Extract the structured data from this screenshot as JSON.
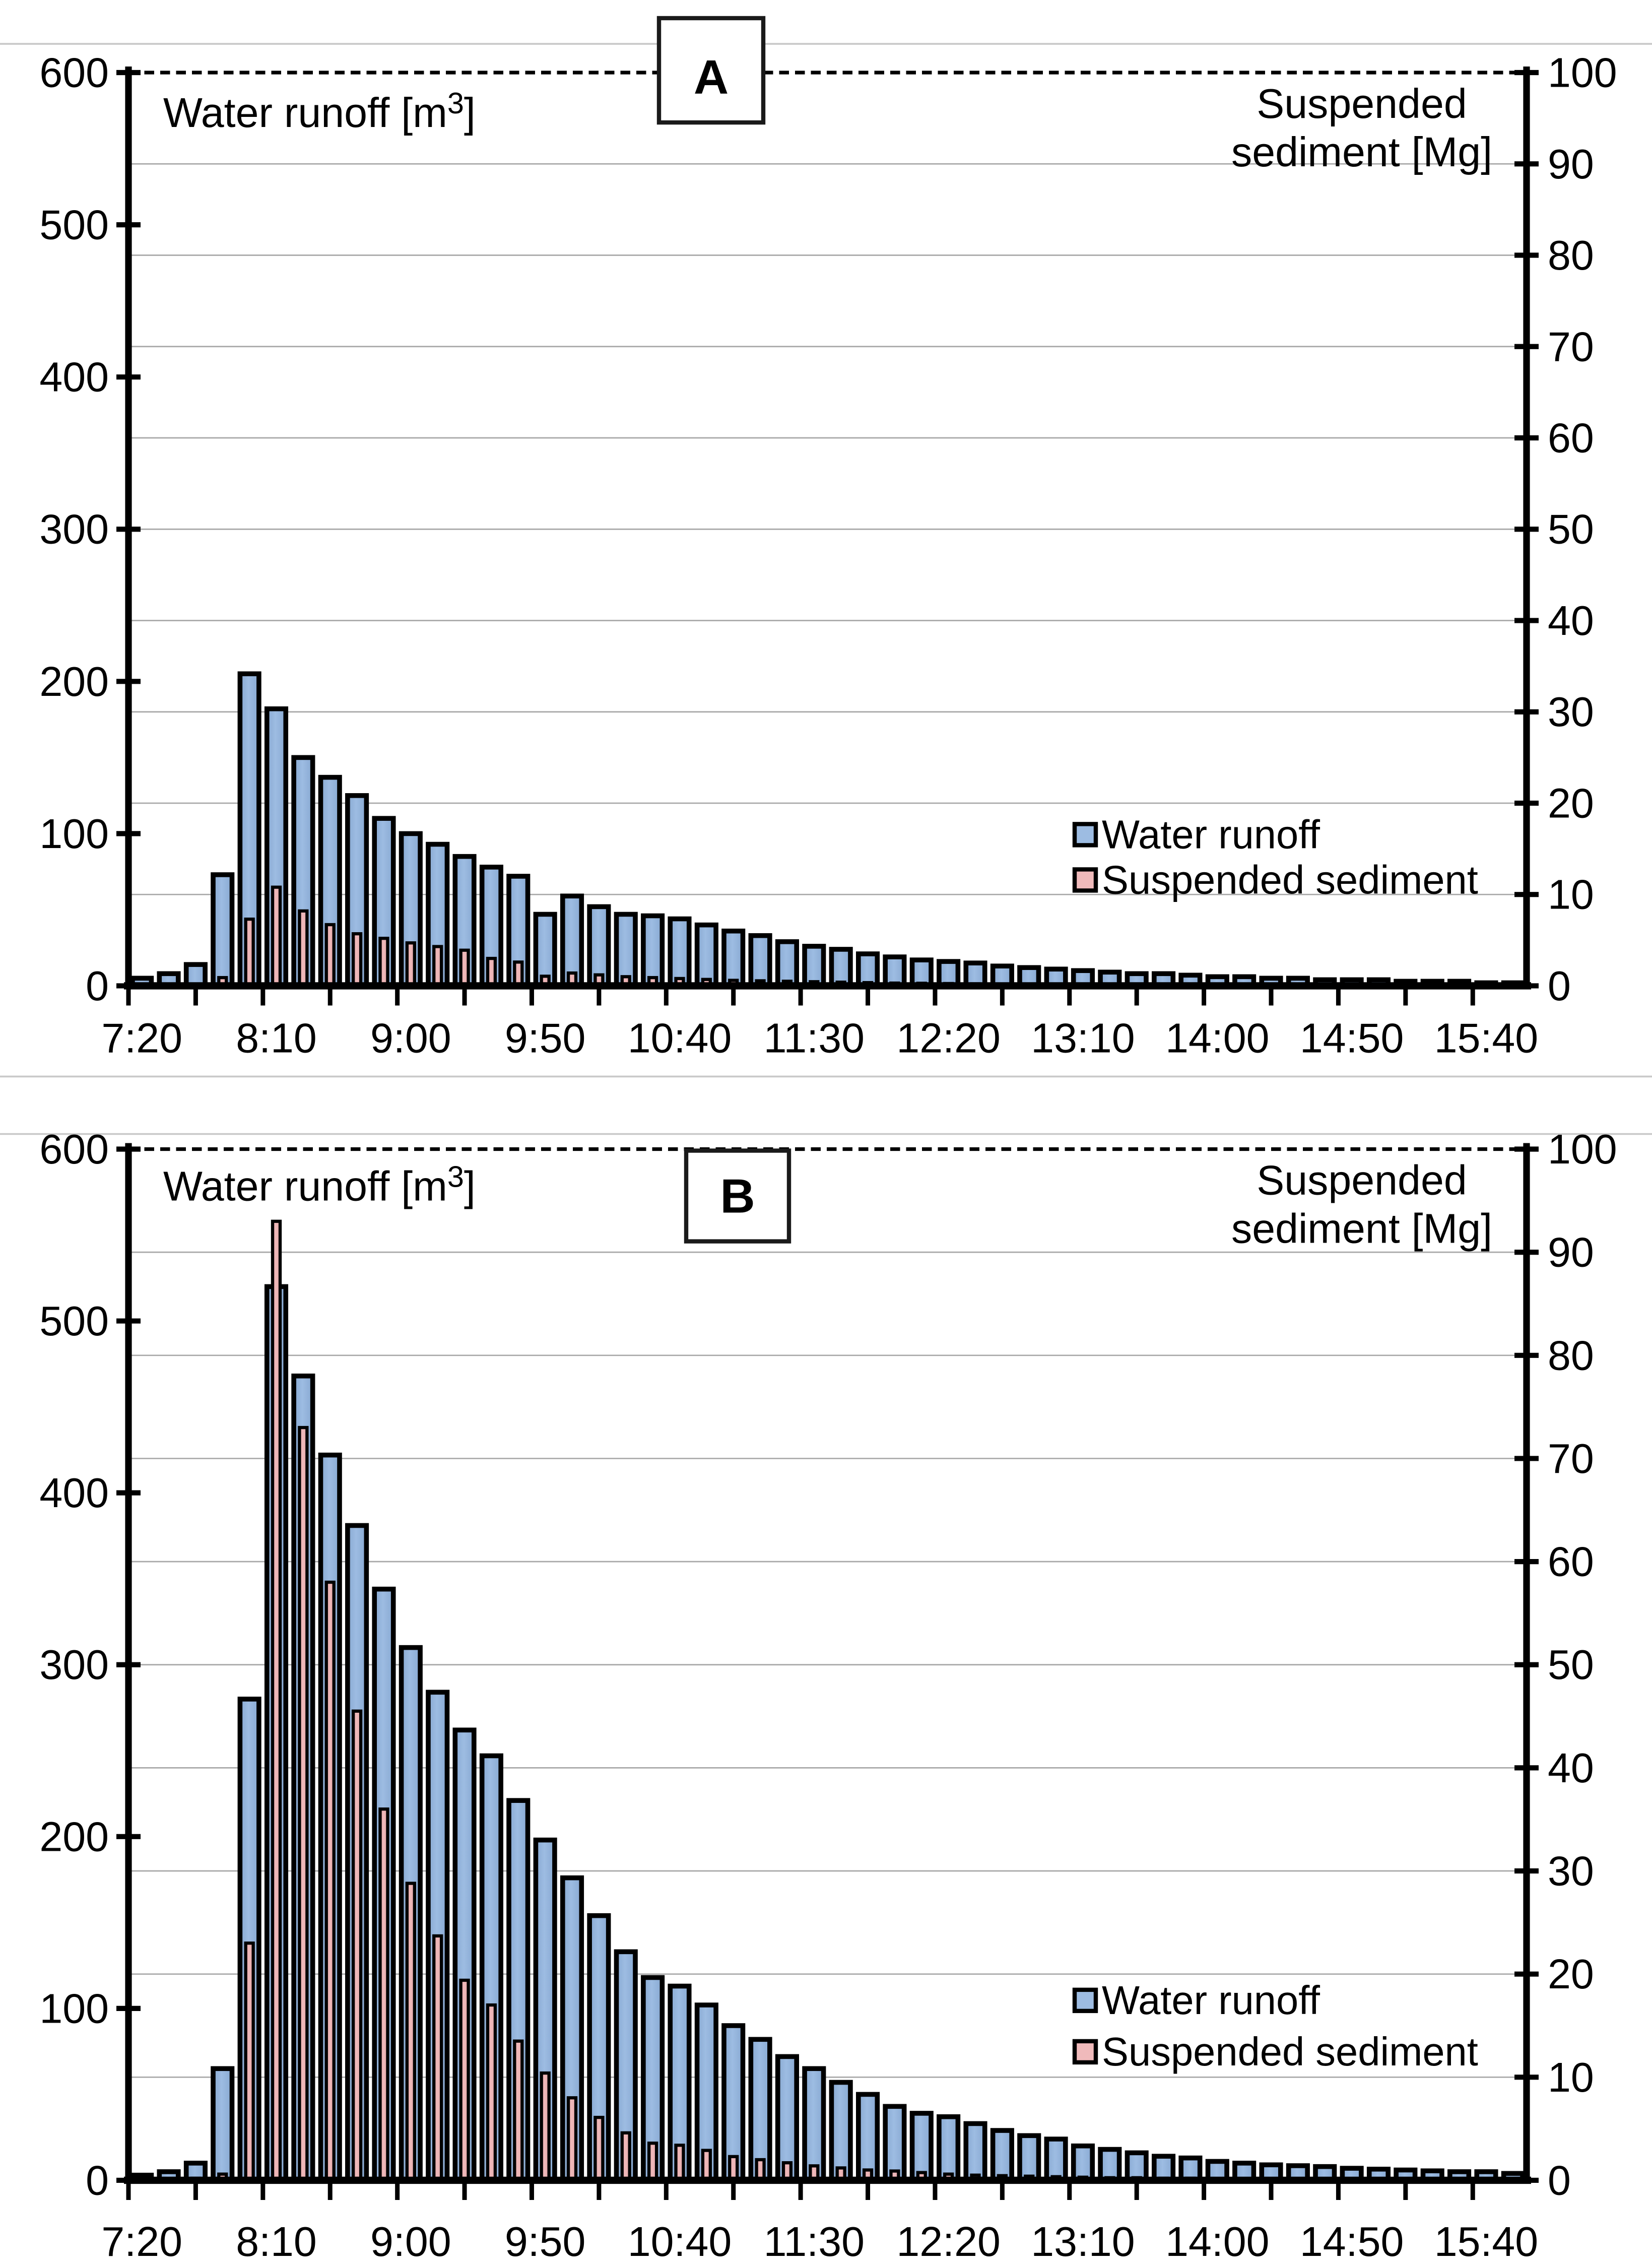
{
  "page": {
    "background": "#ffffff",
    "separator_color": "#c9c9c9"
  },
  "chart_data": [
    {
      "panel_label": "A",
      "type": "bar",
      "y1_axis": {
        "title_pre": "Water runoff [m",
        "title_sup": "3",
        "title_post": "]",
        "min": 0,
        "max": 600,
        "ticks": [
          0,
          100,
          200,
          300,
          400,
          500,
          600
        ]
      },
      "y2_axis": {
        "title_lines": [
          "Suspended",
          "sediment  [Mg]"
        ],
        "min": 0,
        "max": 100,
        "ticks": [
          0,
          10,
          20,
          30,
          40,
          50,
          60,
          70,
          80,
          90,
          100
        ]
      },
      "x_axis": {
        "tick_labels": [
          "7:20",
          "8:10",
          "9:00",
          "9:50",
          "10:40",
          "11:30",
          "12:20",
          "13:10",
          "14:00",
          "14:50",
          "15:40"
        ],
        "categories": [
          "7:20",
          "7:30",
          "7:40",
          "7:50",
          "8:00",
          "8:10",
          "8:20",
          "8:30",
          "8:40",
          "8:50",
          "9:00",
          "9:10",
          "9:20",
          "9:30",
          "9:40",
          "9:50",
          "10:00",
          "10:10",
          "10:20",
          "10:30",
          "10:40",
          "10:50",
          "11:00",
          "11:10",
          "11:20",
          "11:30",
          "11:40",
          "11:50",
          "12:00",
          "12:10",
          "12:20",
          "12:30",
          "12:40",
          "12:50",
          "13:00",
          "13:10",
          "13:20",
          "13:30",
          "13:40",
          "13:50",
          "14:00",
          "14:10",
          "14:20",
          "14:30",
          "14:40",
          "14:50",
          "15:00",
          "15:10",
          "15:20",
          "15:30",
          "15:40",
          "15:50"
        ]
      },
      "grid": {
        "on": true,
        "interval_y2": 10
      },
      "top_reference_line_value": 600,
      "legend": {
        "position": "inside-right",
        "entries": [
          "Water runoff",
          "Suspended sediment"
        ]
      },
      "series": [
        {
          "name": "Water runoff",
          "axis": "y1",
          "unit": "m3",
          "color": "#9dbce2",
          "edge_color": "#88a9d2",
          "values": [
            5,
            8,
            14,
            73,
            205,
            182,
            150,
            137,
            125,
            110,
            100,
            93,
            85,
            78,
            72,
            47,
            59,
            52,
            47,
            46,
            44,
            40,
            36,
            33,
            29,
            26,
            24,
            21,
            19,
            17,
            16,
            15,
            13,
            12,
            11,
            10,
            9,
            8,
            8,
            7,
            6,
            6,
            5,
            5,
            4,
            4,
            4,
            3,
            3,
            3,
            2,
            2
          ]
        },
        {
          "name": "Suspended sediment",
          "axis": "y2",
          "unit": "Mg",
          "color": "#f0babb",
          "edge_color": "#e0a3a5",
          "values": [
            0,
            0,
            0,
            0.9,
            7.3,
            10.8,
            8.2,
            6.7,
            5.7,
            5.2,
            4.7,
            4.3,
            3.9,
            3.0,
            2.6,
            1.05,
            1.4,
            1.2,
            1.0,
            0.9,
            0.8,
            0.7,
            0.6,
            0.55,
            0.5,
            0.45,
            0.4,
            0.35,
            0.3,
            0.28,
            0.25,
            0.22,
            0.2,
            0.18,
            0.15,
            0.15,
            0.12,
            0.1,
            0.1,
            0.1,
            0.1,
            0.08,
            0.08,
            0.08,
            0.05,
            0.05,
            0.05,
            0.05,
            0.05,
            0.05,
            0.05,
            0.05
          ]
        }
      ]
    },
    {
      "panel_label": "B",
      "type": "bar",
      "y1_axis": {
        "title_pre": "Water runoff [m",
        "title_sup": "3",
        "title_post": "]",
        "min": 0,
        "max": 600,
        "ticks": [
          0,
          100,
          200,
          300,
          400,
          500,
          600
        ]
      },
      "y2_axis": {
        "title_lines": [
          "Suspended",
          "sediment [Mg]"
        ],
        "min": 0,
        "max": 100,
        "ticks": [
          0,
          10,
          20,
          30,
          40,
          50,
          60,
          70,
          80,
          90,
          100
        ]
      },
      "x_axis": {
        "tick_labels": [
          "7:20",
          "8:10",
          "9:00",
          "9:50",
          "10:40",
          "11:30",
          "12:20",
          "13:10",
          "14:00",
          "14:50",
          "15:40"
        ],
        "categories": [
          "7:20",
          "7:30",
          "7:40",
          "7:50",
          "8:00",
          "8:10",
          "8:20",
          "8:30",
          "8:40",
          "8:50",
          "9:00",
          "9:10",
          "9:20",
          "9:30",
          "9:40",
          "9:50",
          "10:00",
          "10:10",
          "10:20",
          "10:30",
          "10:40",
          "10:50",
          "11:00",
          "11:10",
          "11:20",
          "11:30",
          "11:40",
          "11:50",
          "12:00",
          "12:10",
          "12:20",
          "12:30",
          "12:40",
          "12:50",
          "13:00",
          "13:10",
          "13:20",
          "13:30",
          "13:40",
          "13:50",
          "14:00",
          "14:10",
          "14:20",
          "14:30",
          "14:40",
          "14:50",
          "15:00",
          "15:10",
          "15:20",
          "15:30",
          "15:40",
          "15:50"
        ]
      },
      "grid": {
        "on": true,
        "interval_y2": 10
      },
      "top_reference_line_value": 600,
      "legend": {
        "position": "inside-right",
        "entries": [
          "Water runoff",
          "Suspended sediment"
        ]
      },
      "series": [
        {
          "name": "Water runoff",
          "axis": "y1",
          "unit": "m3",
          "color": "#9dbce2",
          "edge_color": "#88a9d2",
          "values": [
            3,
            5,
            10,
            65,
            280,
            520,
            468,
            422,
            381,
            344,
            310,
            284,
            262,
            247,
            221,
            198,
            176,
            154,
            133,
            118,
            113,
            102,
            90,
            82,
            72,
            65,
            57,
            50,
            43,
            39,
            37,
            33,
            29,
            26,
            24,
            20,
            18,
            16,
            14,
            13,
            11,
            10,
            9,
            8.5,
            8,
            7,
            6.5,
            6,
            5.5,
            5,
            5,
            4
          ]
        },
        {
          "name": "Suspended sediment",
          "axis": "y2",
          "unit": "Mg",
          "color": "#f0babb",
          "edge_color": "#e0a3a5",
          "values": [
            0,
            0,
            0.2,
            0.6,
            23,
            93,
            73,
            58,
            45.5,
            36,
            28.8,
            23.7,
            19.4,
            17,
            13.5,
            10.4,
            8,
            6.1,
            4.6,
            3.6,
            3.4,
            2.9,
            2.3,
            2.0,
            1.7,
            1.4,
            1.2,
            1.0,
            0.9,
            0.75,
            0.6,
            0.5,
            0.45,
            0.4,
            0.35,
            0.3,
            0.25,
            0.25,
            0.2,
            0.2,
            0.15,
            0.15,
            0.1,
            0.1,
            0.1,
            0.1,
            0.1,
            0.05,
            0.05,
            0.05,
            0.05,
            0.05
          ]
        }
      ]
    }
  ]
}
